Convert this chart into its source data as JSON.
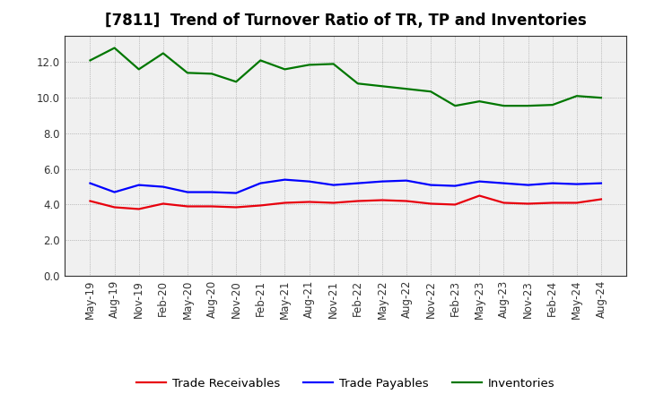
{
  "title": "[7811]  Trend of Turnover Ratio of TR, TP and Inventories",
  "x_labels": [
    "May-19",
    "Aug-19",
    "Nov-19",
    "Feb-20",
    "May-20",
    "Aug-20",
    "Nov-20",
    "Feb-21",
    "May-21",
    "Aug-21",
    "Nov-21",
    "Feb-22",
    "May-22",
    "Aug-22",
    "Nov-22",
    "Feb-23",
    "May-23",
    "Aug-23",
    "Nov-23",
    "Feb-24",
    "May-24",
    "Aug-24"
  ],
  "trade_receivables": [
    4.2,
    3.85,
    3.75,
    4.05,
    3.9,
    3.9,
    3.85,
    3.95,
    4.1,
    4.15,
    4.1,
    4.2,
    4.25,
    4.2,
    4.05,
    4.0,
    4.5,
    4.1,
    4.05,
    4.1,
    4.1,
    4.3
  ],
  "trade_payables": [
    5.2,
    4.7,
    5.1,
    5.0,
    4.7,
    4.7,
    4.65,
    5.2,
    5.4,
    5.3,
    5.1,
    5.2,
    5.3,
    5.35,
    5.1,
    5.05,
    5.3,
    5.2,
    5.1,
    5.2,
    5.15,
    5.2
  ],
  "inventories": [
    12.1,
    12.8,
    11.6,
    12.5,
    11.4,
    11.35,
    10.9,
    12.1,
    11.6,
    11.85,
    11.9,
    10.8,
    10.65,
    10.5,
    10.35,
    9.55,
    9.8,
    9.55,
    9.55,
    9.6,
    10.1,
    10.0
  ],
  "color_tr": "#e8000d",
  "color_tp": "#0000ff",
  "color_inv": "#007700",
  "ylim": [
    0.0,
    13.5
  ],
  "yticks": [
    0.0,
    2.0,
    4.0,
    6.0,
    8.0,
    10.0,
    12.0
  ],
  "legend_tr": "Trade Receivables",
  "legend_tp": "Trade Payables",
  "legend_inv": "Inventories",
  "bg_color": "#ffffff",
  "plot_bg_color": "#f0f0f0",
  "grid_color": "#555555",
  "title_fontsize": 12,
  "tick_fontsize": 8.5
}
